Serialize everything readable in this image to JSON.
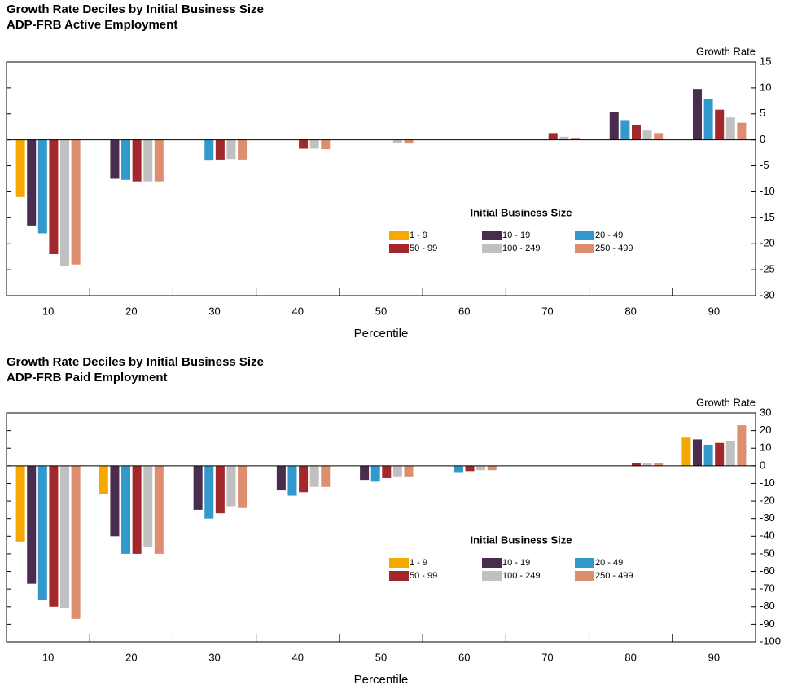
{
  "chart_data": [
    {
      "type": "bar",
      "title": "Growth Rate Deciles by Initial Business Size",
      "subtitle": "ADP-FRB Active Employment",
      "y_label": "Growth Rate",
      "x_label": "Percentile",
      "legend_title": "Initial Business Size",
      "categories": [
        "10",
        "20",
        "30",
        "40",
        "50",
        "60",
        "70",
        "80",
        "90"
      ],
      "ylim": [
        -30,
        15
      ],
      "yticks": [
        15,
        10,
        5,
        0,
        -5,
        -10,
        -15,
        -20,
        -25,
        -30
      ],
      "series": [
        {
          "name": "1 - 9",
          "color": "#f5a800",
          "values": [
            -11,
            0,
            0,
            0,
            0,
            0,
            0,
            0,
            0
          ]
        },
        {
          "name": "10 - 19",
          "color": "#4a2c4e",
          "values": [
            -16.5,
            -7.5,
            0,
            0,
            0,
            0,
            0,
            5.3,
            9.8
          ]
        },
        {
          "name": "20 - 49",
          "color": "#3399cc",
          "values": [
            -18,
            -7.7,
            -4,
            0,
            0,
            0,
            0,
            3.8,
            7.8
          ]
        },
        {
          "name": "50 - 99",
          "color": "#a3282c",
          "values": [
            -22,
            -8,
            -3.8,
            -1.7,
            0,
            0,
            1.3,
            2.8,
            5.8
          ]
        },
        {
          "name": "100 - 249",
          "color": "#c0c0c0",
          "values": [
            -24.2,
            -8,
            -3.7,
            -1.7,
            -0.6,
            0,
            0.6,
            1.8,
            4.3
          ]
        },
        {
          "name": "250 - 499",
          "color": "#dd8e6e",
          "values": [
            -24,
            -8,
            -3.8,
            -1.8,
            -0.7,
            0,
            0.4,
            1.3,
            3.3
          ]
        }
      ]
    },
    {
      "type": "bar",
      "title": "Growth Rate Deciles by Initial Business Size",
      "subtitle": "ADP-FRB Paid Employment",
      "y_label": "Growth Rate",
      "x_label": "Percentile",
      "legend_title": "Initial Business Size",
      "categories": [
        "10",
        "20",
        "30",
        "40",
        "50",
        "60",
        "70",
        "80",
        "90"
      ],
      "ylim": [
        -100,
        30
      ],
      "yticks": [
        30,
        20,
        10,
        0,
        -10,
        -20,
        -30,
        -40,
        -50,
        -60,
        -70,
        -80,
        -90,
        -100
      ],
      "series": [
        {
          "name": "1 - 9",
          "color": "#f5a800",
          "values": [
            -43,
            -16,
            0,
            0,
            0,
            0,
            0,
            0,
            16
          ]
        },
        {
          "name": "10 - 19",
          "color": "#4a2c4e",
          "values": [
            -67,
            -40,
            -25,
            -14,
            -8,
            0,
            0,
            0,
            15
          ]
        },
        {
          "name": "20 - 49",
          "color": "#3399cc",
          "values": [
            -76,
            -50,
            -30,
            -17,
            -9,
            -4,
            0,
            0,
            12
          ]
        },
        {
          "name": "50 - 99",
          "color": "#a3282c",
          "values": [
            -80,
            -50,
            -27,
            -15,
            -7,
            -3,
            0,
            1.5,
            13
          ]
        },
        {
          "name": "100 - 249",
          "color": "#c0c0c0",
          "values": [
            -81,
            -46,
            -23,
            -12,
            -6,
            -2.5,
            0,
            1.5,
            14
          ]
        },
        {
          "name": "250 - 499",
          "color": "#dd8e6e",
          "values": [
            -87,
            -50,
            -24,
            -12,
            -6,
            -2.5,
            0,
            1.5,
            23
          ]
        }
      ]
    }
  ]
}
